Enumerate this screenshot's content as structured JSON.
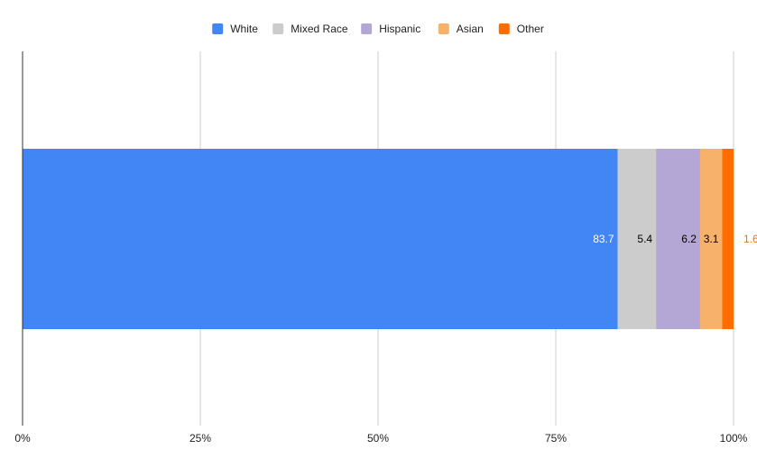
{
  "chart_data": {
    "type": "bar",
    "orientation": "horizontal",
    "stacked": "percent",
    "categories": [
      ""
    ],
    "series": [
      {
        "name": "White",
        "values": [
          83.7
        ],
        "color": "#4285f4",
        "label_color": "#ffffff"
      },
      {
        "name": "Mixed Race",
        "values": [
          5.4
        ],
        "color": "#cccccc",
        "label_color": "#000000"
      },
      {
        "name": "Hispanic",
        "values": [
          6.2
        ],
        "color": "#b4a7d6",
        "label_color": "#000000"
      },
      {
        "name": "Asian",
        "values": [
          3.1
        ],
        "color": "#f6b26b",
        "label_color": "#000000"
      },
      {
        "name": "Other",
        "values": [
          1.6
        ],
        "color": "#ff6d01",
        "label_color": "#ff6d01"
      }
    ],
    "data_labels": [
      "83.7",
      "5.4",
      "6.2",
      "3.1",
      "1.6"
    ],
    "xlim": [
      0,
      100
    ],
    "x_ticks": [
      "0%",
      "25%",
      "50%",
      "75%",
      "100%"
    ],
    "x_tick_values": [
      0,
      25,
      50,
      75,
      100
    ],
    "grid": true,
    "legend_position": "top"
  }
}
